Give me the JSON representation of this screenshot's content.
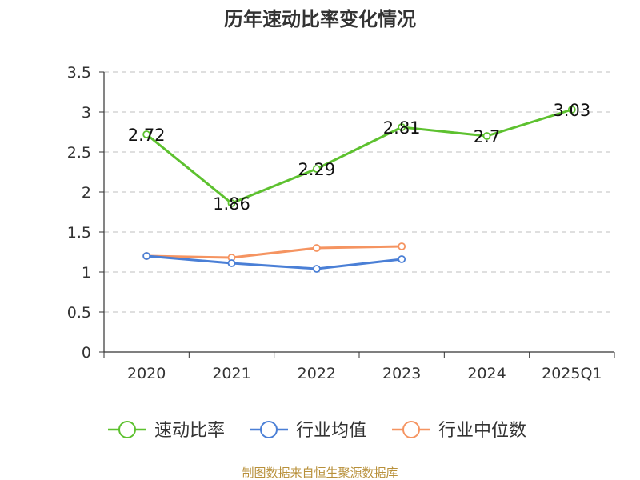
{
  "chart_data": {
    "type": "line",
    "title": "历年速动比率变化情况",
    "categories": [
      "2020",
      "2021",
      "2022",
      "2023",
      "2024",
      "2025Q1"
    ],
    "ylim": [
      0,
      3.5
    ],
    "yticks": [
      "0",
      "0.5",
      "1",
      "1.5",
      "2",
      "2.5",
      "3",
      "3.5"
    ],
    "grid": "horizontal dashed",
    "legend_position": "bottom",
    "series": [
      {
        "name": "速动比率",
        "color": "#5dc12f",
        "values": [
          2.72,
          1.86,
          2.29,
          2.81,
          2.7,
          3.03
        ],
        "labels": [
          "2.72",
          "1.86",
          "2.29",
          "2.81",
          "2.7",
          "3.03"
        ],
        "show_labels": true
      },
      {
        "name": "行业均值",
        "color": "#4a7fd6",
        "values": [
          1.2,
          1.11,
          1.04,
          1.16,
          null,
          null
        ],
        "show_labels": false
      },
      {
        "name": "行业中位数",
        "color": "#f59461",
        "values": [
          1.2,
          1.18,
          1.3,
          1.32,
          null,
          null
        ],
        "show_labels": false
      }
    ]
  },
  "source_note": "制图数据来自恒生聚源数据库"
}
